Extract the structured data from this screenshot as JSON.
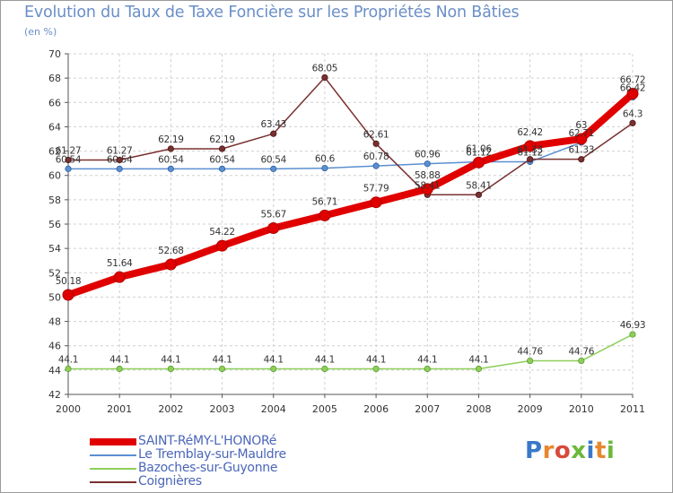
{
  "title": "Evolution du Taux de Taxe Foncière sur les Propriétés Non Bâties",
  "subtitle": "(en %)",
  "logo": {
    "text": "Proxiti",
    "letters": [
      "P",
      "r",
      "o",
      "x",
      "i",
      "t",
      "i"
    ],
    "colors": [
      "#3a78c8",
      "#e8862e",
      "#d84a3a",
      "#6bb83a",
      "#3a78c8",
      "#e8862e",
      "#6bb83a"
    ]
  },
  "colors": {
    "red": "#e00000",
    "blue": "#5b8fd1",
    "green": "#8ecf5a",
    "brown": "#7a3030",
    "grid": "#d0d0d0",
    "axis": "#555555",
    "labels": "#333333",
    "bg": "#ffffff"
  },
  "chart_data": {
    "type": "line",
    "title": "Evolution du Taux de Taxe Foncière sur les Propriétés Non Bâties",
    "ylabel": "(en %)",
    "xlabel": "",
    "ylim": [
      42,
      70
    ],
    "yticks": [
      "42",
      "44",
      "46",
      "48",
      "50",
      "52",
      "54",
      "56",
      "58",
      "60",
      "62",
      "64",
      "66",
      "68",
      "70"
    ],
    "categories": [
      "2000",
      "2001",
      "2002",
      "2003",
      "2004",
      "2005",
      "2006",
      "2007",
      "2008",
      "2009",
      "2010",
      "2011"
    ],
    "grid": true,
    "legend_position": "bottom-left",
    "series": [
      {
        "name": "SAINT-RéMY-L'HONORé",
        "color": "#e00000",
        "values": [
          50.18,
          51.64,
          52.68,
          54.22,
          55.67,
          56.71,
          57.79,
          58.88,
          61.06,
          62.42,
          63,
          66.72
        ],
        "labels": [
          "50.18",
          "51.64",
          "52.68",
          "54.22",
          "55.67",
          "56.71",
          "57.79",
          "58.88",
          "61.06",
          "62.42",
          "63",
          "66.72"
        ]
      },
      {
        "name": "Le Tremblay-sur-Mauldre",
        "color": "#5b8fd1",
        "values": [
          60.54,
          60.54,
          60.54,
          60.54,
          60.54,
          60.6,
          60.78,
          60.96,
          61.12,
          61.12,
          62.71,
          66.42
        ],
        "labels": [
          "60.54",
          "60.54",
          "60.54",
          "60.54",
          "60.54",
          "60.6",
          "60.78",
          "60.96",
          "61.12",
          "61.12",
          "62.71",
          "66.42"
        ]
      },
      {
        "name": "Bazoches-sur-Guyonne",
        "color": "#8ecf5a",
        "values": [
          44.1,
          44.1,
          44.1,
          44.1,
          44.1,
          44.1,
          44.1,
          44.1,
          44.1,
          44.76,
          44.76,
          46.93
        ],
        "labels": [
          "44.1",
          "44.1",
          "44.1",
          "44.1",
          "44.1",
          "44.1",
          "44.1",
          "44.1",
          "44.1",
          "44.76",
          "44.76",
          "46.93"
        ]
      },
      {
        "name": "Coignières",
        "color": "#7a3030",
        "values": [
          61.27,
          61.27,
          62.19,
          62.19,
          63.43,
          68.05,
          62.61,
          58.41,
          58.41,
          61.33,
          61.33,
          64.3
        ],
        "labels": [
          "61.27",
          "61.27",
          "62.19",
          "62.19",
          "63.43",
          "68.05",
          "62.61",
          "58.41",
          "58.41",
          "61.33",
          "61.33",
          "64.3"
        ]
      }
    ]
  }
}
